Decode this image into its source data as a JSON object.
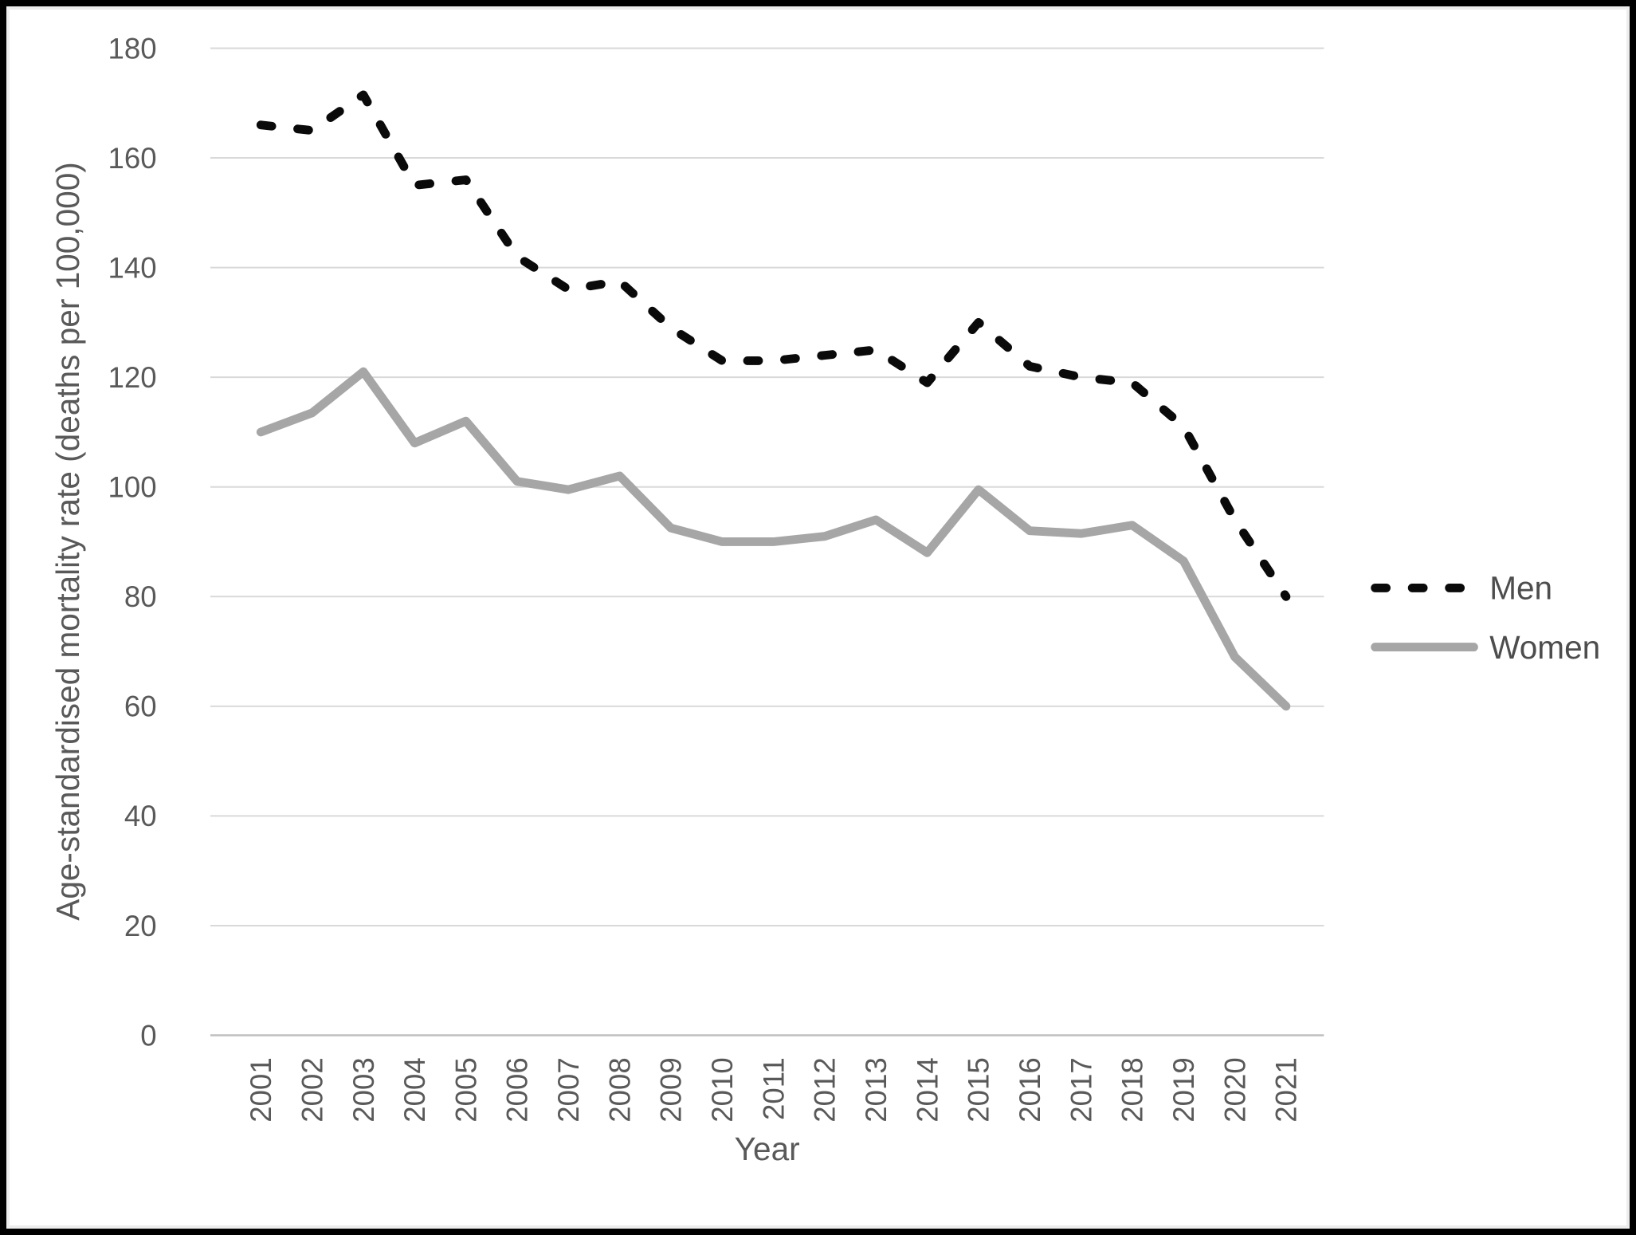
{
  "chart_data": {
    "type": "line",
    "title": "",
    "xlabel": "Year",
    "ylabel": "Age-standardised mortality rate (deaths per 100,000)",
    "categories": [
      "2001",
      "2002",
      "2003",
      "2004",
      "2005",
      "2006",
      "2007",
      "2008",
      "2009",
      "2010",
      "2011",
      "2012",
      "2013",
      "2014",
      "2015",
      "2016",
      "2017",
      "2018",
      "2019",
      "2020",
      "2021"
    ],
    "ylim": [
      0,
      180
    ],
    "yticks": [
      0,
      20,
      40,
      60,
      80,
      100,
      120,
      140,
      160,
      180
    ],
    "grid": "horizontal-only",
    "legend_position": "right-middle",
    "colors": {
      "men_line": "#0a0a0a",
      "women_line": "#a6a6a6",
      "gridline": "#d9d9d9",
      "axis_line": "#bfbfbf",
      "tick_text": "#595959"
    },
    "series": [
      {
        "name": "Men",
        "style": "dashed",
        "color": "#0a0a0a",
        "values": [
          166,
          165,
          171.5,
          155,
          156,
          142,
          136,
          137.5,
          129,
          123,
          123,
          124,
          125,
          119,
          130,
          122,
          120,
          119,
          111,
          94,
          80
        ]
      },
      {
        "name": "Women",
        "style": "solid",
        "color": "#a6a6a6",
        "values": [
          110,
          113.5,
          121,
          108,
          112,
          101,
          99.5,
          102,
          92.5,
          90,
          90,
          91,
          94,
          88,
          99.5,
          92,
          91.5,
          93,
          86.5,
          69,
          60
        ]
      }
    ]
  }
}
